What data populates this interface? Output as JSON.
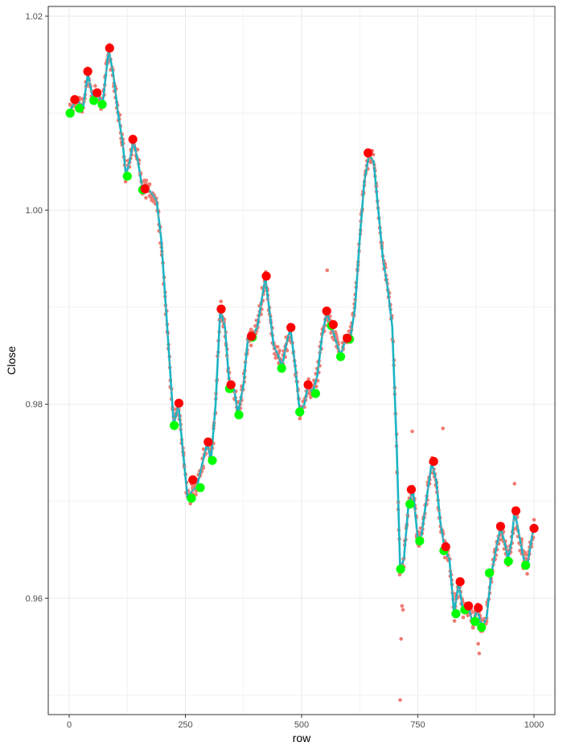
{
  "chart_data": {
    "type": "line",
    "xlabel": "row",
    "ylabel": "Close",
    "xlim": [
      -45,
      1045
    ],
    "ylim": [
      0.948,
      1.021
    ],
    "x_ticks": [
      0,
      250,
      500,
      750,
      1000
    ],
    "x_tick_labels": [
      "0",
      "250",
      "500",
      "750",
      "1000"
    ],
    "y_ticks": [
      0.96,
      0.98,
      1.0,
      1.02
    ],
    "y_tick_labels": [
      "0.96",
      "0.98",
      "1.00",
      "1.02"
    ],
    "grid": true,
    "colors": {
      "raw_points": "#f07c73",
      "smoothed_line": "#1cb4c4",
      "line_points": "#9a9a9a",
      "peaks": "#ff0000",
      "troughs": "#00ff00",
      "grid": "#ebebeb",
      "panel_border": "#333333",
      "tick_text": "#4d4d4d"
    },
    "smoothed": [
      [
        0,
        1.01
      ],
      [
        10,
        1.011
      ],
      [
        20,
        1.0112
      ],
      [
        30,
        1.0106
      ],
      [
        40,
        1.014
      ],
      [
        50,
        1.0118
      ],
      [
        60,
        1.012
      ],
      [
        72,
        1.011
      ],
      [
        85,
        1.0165
      ],
      [
        95,
        1.014
      ],
      [
        105,
        1.01
      ],
      [
        115,
        1.007
      ],
      [
        122,
        1.0036
      ],
      [
        130,
        1.005
      ],
      [
        138,
        1.0072
      ],
      [
        148,
        1.005
      ],
      [
        158,
        1.0021
      ],
      [
        168,
        1.0023
      ],
      [
        178,
        1.0017
      ],
      [
        188,
        1.001
      ],
      [
        198,
        0.997
      ],
      [
        208,
        0.99
      ],
      [
        215,
        0.985
      ],
      [
        225,
        0.9778
      ],
      [
        235,
        0.98
      ],
      [
        245,
        0.975
      ],
      [
        255,
        0.9702
      ],
      [
        263,
        0.971
      ],
      [
        275,
        0.9715
      ],
      [
        287,
        0.974
      ],
      [
        297,
        0.976
      ],
      [
        305,
        0.9742
      ],
      [
        315,
        0.98
      ],
      [
        325,
        0.9897
      ],
      [
        335,
        0.988
      ],
      [
        345,
        0.9818
      ],
      [
        355,
        0.9815
      ],
      [
        363,
        0.979
      ],
      [
        375,
        0.982
      ],
      [
        385,
        0.987
      ],
      [
        395,
        0.987
      ],
      [
        405,
        0.988
      ],
      [
        415,
        0.991
      ],
      [
        422,
        0.993
      ],
      [
        430,
        0.99
      ],
      [
        440,
        0.986
      ],
      [
        450,
        0.985
      ],
      [
        458,
        0.9838
      ],
      [
        466,
        0.986
      ],
      [
        476,
        0.9878
      ],
      [
        486,
        0.984
      ],
      [
        496,
        0.9792
      ],
      [
        506,
        0.98
      ],
      [
        514,
        0.982
      ],
      [
        524,
        0.9812
      ],
      [
        534,
        0.983
      ],
      [
        544,
        0.987
      ],
      [
        554,
        0.9895
      ],
      [
        564,
        0.988
      ],
      [
        574,
        0.9865
      ],
      [
        584,
        0.985
      ],
      [
        595,
        0.9868
      ],
      [
        605,
        0.9868
      ],
      [
        615,
        0.99
      ],
      [
        625,
        0.997
      ],
      [
        635,
        1.003
      ],
      [
        645,
        1.0057
      ],
      [
        655,
        1.005
      ],
      [
        665,
        1.0
      ],
      [
        675,
        0.995
      ],
      [
        685,
        0.992
      ],
      [
        695,
        0.988
      ],
      [
        705,
        0.975
      ],
      [
        712,
        0.963
      ],
      [
        720,
        0.964
      ],
      [
        730,
        0.9697
      ],
      [
        740,
        0.971
      ],
      [
        750,
        0.966
      ],
      [
        758,
        0.9665
      ],
      [
        768,
        0.97
      ],
      [
        780,
        0.974
      ],
      [
        790,
        0.972
      ],
      [
        798,
        0.968
      ],
      [
        808,
        0.965
      ],
      [
        818,
        0.964
      ],
      [
        828,
        0.9585
      ],
      [
        838,
        0.9615
      ],
      [
        848,
        0.9585
      ],
      [
        858,
        0.9592
      ],
      [
        868,
        0.9575
      ],
      [
        878,
        0.9588
      ],
      [
        888,
        0.957
      ],
      [
        898,
        0.958
      ],
      [
        908,
        0.9625
      ],
      [
        918,
        0.965
      ],
      [
        928,
        0.9673
      ],
      [
        938,
        0.9655
      ],
      [
        944,
        0.964
      ],
      [
        952,
        0.966
      ],
      [
        958,
        0.969
      ],
      [
        966,
        0.967
      ],
      [
        978,
        0.964
      ],
      [
        986,
        0.9635
      ],
      [
        996,
        0.9665
      ],
      [
        1000,
        0.9672
      ]
    ],
    "peaks": [
      [
        12,
        1.0114
      ],
      [
        40,
        1.0143
      ],
      [
        60,
        1.0121
      ],
      [
        87,
        1.0167
      ],
      [
        137,
        1.0073
      ],
      [
        163,
        1.0022
      ],
      [
        236,
        0.9801
      ],
      [
        266,
        0.9722
      ],
      [
        299,
        0.9761
      ],
      [
        327,
        0.9898
      ],
      [
        348,
        0.982
      ],
      [
        392,
        0.987
      ],
      [
        424,
        0.9932
      ],
      [
        477,
        0.9879
      ],
      [
        514,
        0.982
      ],
      [
        554,
        0.9896
      ],
      [
        568,
        0.9882
      ],
      [
        598,
        0.9868
      ],
      [
        643,
        1.0059
      ],
      [
        736,
        0.9712
      ],
      [
        784,
        0.9741
      ],
      [
        810,
        0.9653
      ],
      [
        841,
        0.9617
      ],
      [
        859,
        0.9592
      ],
      [
        880,
        0.959
      ],
      [
        928,
        0.9674
      ],
      [
        961,
        0.969
      ],
      [
        1000,
        0.9672
      ]
    ],
    "troughs": [
      [
        2,
        1.01
      ],
      [
        22,
        1.0105
      ],
      [
        53,
        1.0113
      ],
      [
        71,
        1.0109
      ],
      [
        125,
        1.0035
      ],
      [
        158,
        1.0021
      ],
      [
        226,
        0.9778
      ],
      [
        263,
        0.9703
      ],
      [
        282,
        0.9714
      ],
      [
        308,
        0.9742
      ],
      [
        345,
        0.9816
      ],
      [
        365,
        0.9789
      ],
      [
        394,
        0.9869
      ],
      [
        457,
        0.9837
      ],
      [
        496,
        0.9792
      ],
      [
        530,
        0.9811
      ],
      [
        564,
        0.9881
      ],
      [
        584,
        0.9849
      ],
      [
        603,
        0.9867
      ],
      [
        713,
        0.963
      ],
      [
        733,
        0.9697
      ],
      [
        754,
        0.9659
      ],
      [
        806,
        0.9649
      ],
      [
        832,
        0.9584
      ],
      [
        851,
        0.9588
      ],
      [
        873,
        0.9576
      ],
      [
        887,
        0.957
      ],
      [
        904,
        0.9626
      ],
      [
        945,
        0.9638
      ],
      [
        982,
        0.9634
      ]
    ]
  }
}
